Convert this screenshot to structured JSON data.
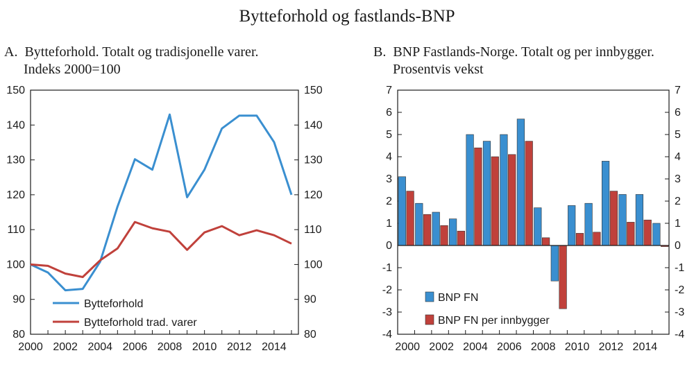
{
  "figure_title": "Bytteforhold og fastlands-BNP",
  "colors": {
    "blue": "#3a8fd0",
    "red": "#c0413b",
    "axis": "#1a1a1a"
  },
  "chart_data": [
    {
      "type": "line",
      "panel_label": "A.",
      "title_line1": "Bytteforhold. Totalt og tradisjonelle varer.",
      "title_line2": "Indeks 2000=100",
      "x": [
        2000,
        2001,
        2002,
        2003,
        2004,
        2005,
        2006,
        2007,
        2008,
        2009,
        2010,
        2011,
        2012,
        2013,
        2014,
        2015
      ],
      "xticks": [
        "2000",
        "2002",
        "2004",
        "2006",
        "2008",
        "2010",
        "2012",
        "2014"
      ],
      "xlim": [
        2000,
        2015.4
      ],
      "ylim": [
        80,
        150
      ],
      "yticks": [
        "80",
        "90",
        "100",
        "110",
        "120",
        "130",
        "140",
        "150"
      ],
      "series": [
        {
          "name": "Bytteforhold",
          "color": "#3a8fd0",
          "values": [
            100,
            97.7,
            92.6,
            93,
            100.8,
            116.6,
            130.2,
            127.2,
            143,
            119.3,
            127.2,
            139,
            142.7,
            142.7,
            135.1,
            120
          ]
        },
        {
          "name": "Bytteforhold trad. varer",
          "color": "#c0413b",
          "values": [
            100,
            99.6,
            97.4,
            96.4,
            101.2,
            104.6,
            112.2,
            110.4,
            109.4,
            104.2,
            109.2,
            111,
            108.4,
            109.8,
            108.4,
            106
          ]
        }
      ],
      "legend": [
        "Bytteforhold",
        "Bytteforhold trad. varer"
      ],
      "legend_position": "bottom-center"
    },
    {
      "type": "bar",
      "panel_label": "B.",
      "title_line1": "BNP Fastlands-Norge. Totalt og per innbygger.",
      "title_line2": "Prosentvis vekst",
      "categories": [
        "2000",
        "2001",
        "2002",
        "2003",
        "2004",
        "2005",
        "2006",
        "2007",
        "2008",
        "2009",
        "2010",
        "2011",
        "2012",
        "2013",
        "2014",
        "2015"
      ],
      "xticks": [
        "2000",
        "2002",
        "2004",
        "2006",
        "2008",
        "2010",
        "2012",
        "2014"
      ],
      "ylim": [
        -4,
        7
      ],
      "yticks": [
        "-4",
        "-3",
        "-2",
        "-1",
        "0",
        "1",
        "2",
        "3",
        "4",
        "5",
        "6",
        "7"
      ],
      "series": [
        {
          "name": "BNP FN",
          "color": "#3a8fd0",
          "values": [
            3.1,
            1.9,
            1.5,
            1.2,
            5.0,
            4.7,
            5.0,
            5.7,
            1.7,
            -1.6,
            1.8,
            1.9,
            3.8,
            2.3,
            2.3,
            1.0
          ]
        },
        {
          "name": "BNP FN per innbygger",
          "color": "#c0413b",
          "values": [
            2.45,
            1.4,
            0.9,
            0.65,
            4.4,
            4.0,
            4.1,
            4.7,
            0.35,
            -2.85,
            0.55,
            0.6,
            2.45,
            1.05,
            1.15,
            -0.05
          ]
        }
      ],
      "legend": [
        "BNP FN",
        "BNP FN per innbygger"
      ],
      "legend_position": "bottom-left"
    }
  ]
}
